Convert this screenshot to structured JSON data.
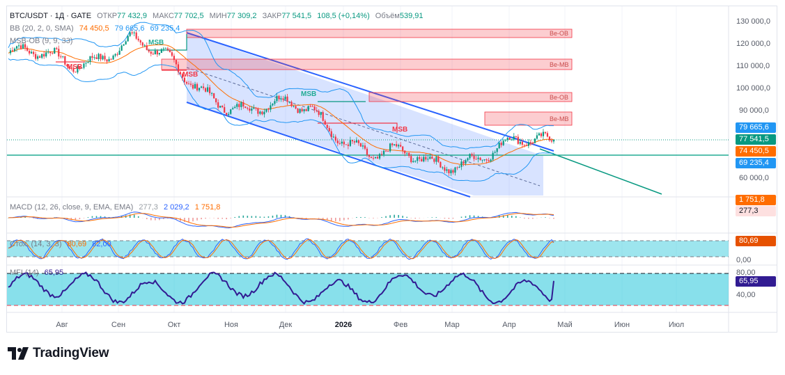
{
  "header": {
    "symbol": "BTC/USDT · 1Д · GATE",
    "open_label": "ОТКР",
    "open_value": "77 432,9",
    "high_label": "МАКС",
    "high_value": "77 702,5",
    "low_label": "МИН",
    "low_value": "77 309,2",
    "close_label": "ЗАКР",
    "close_value": "77 541,5",
    "change": "108,5 (+0,14%)",
    "volume_label": "Объём",
    "volume_value": "539,91"
  },
  "bb_legend": {
    "name": "BB (20, 2, 0, SMA)",
    "basis": "74 450,5",
    "upper": "79 665,6",
    "lower": "69 235,4"
  },
  "msb_legend": {
    "name": "MSB-OB (9, 9, 33)"
  },
  "macd_legend": {
    "name": "MACD (12, 26, close, 9, EMA, EMA)",
    "hist": "277,3",
    "macd": "2 029,2",
    "signal": "1 751,8"
  },
  "stoch_legend": {
    "name": "Стох. (14, 3, 3)",
    "k": "80,69",
    "d": "82,00"
  },
  "mfi_legend": {
    "name": "MFI (14)",
    "value": "65,95"
  },
  "price_axis": [
    "130 000,0",
    "120 000,0",
    "110 000,0",
    "100 000,0",
    "90 000,0",
    "60 000,0"
  ],
  "price_tags": {
    "bb_upper": "79 665,6",
    "close": "77 541,5",
    "bb_basis": "74 450,5",
    "bb_lower": "69 235,4",
    "macd_signal": "1 751,8",
    "macd_hist": "277,3",
    "stoch": "80,69",
    "stoch_axis": "0,00",
    "mfi_top": "80,00",
    "mfi": "65,95",
    "mfi_bottom": "40,00"
  },
  "zones": [
    "Be-OB",
    "Be-MB",
    "Be-OB",
    "Be-MB"
  ],
  "msb_labels": [
    "MSB",
    "MSB",
    "MSB",
    "MSB",
    "MSB"
  ],
  "months": [
    "Авг",
    "Сен",
    "Окт",
    "Ноя",
    "Дек",
    "2026",
    "Фев",
    "Мар",
    "Апр",
    "Май",
    "Июн",
    "Июл"
  ],
  "logo": "TradingView",
  "colors": {
    "up": "#089981",
    "down": "#f23645",
    "bb": "#2196f3",
    "basis": "#ff6d00",
    "channel": "#2962ff",
    "macd": "#2962ff",
    "mfi": "#311b92",
    "stoch_fill": "#26c6da"
  },
  "chart_data": {
    "type": "line",
    "title": "BTC/USDT · 1Д · GATE",
    "x": [
      "Авг",
      "Сен",
      "Окт",
      "Ноя",
      "Дек",
      "2026",
      "Фев",
      "Мар",
      "Апр",
      "Май"
    ],
    "series": [
      {
        "name": "BTC/USDT",
        "values": [
          116000,
          111000,
          122000,
          104000,
          90000,
          92000,
          70000,
          68000,
          72000,
          77541.5
        ]
      }
    ],
    "ylim": [
      55000,
      132000
    ]
  }
}
